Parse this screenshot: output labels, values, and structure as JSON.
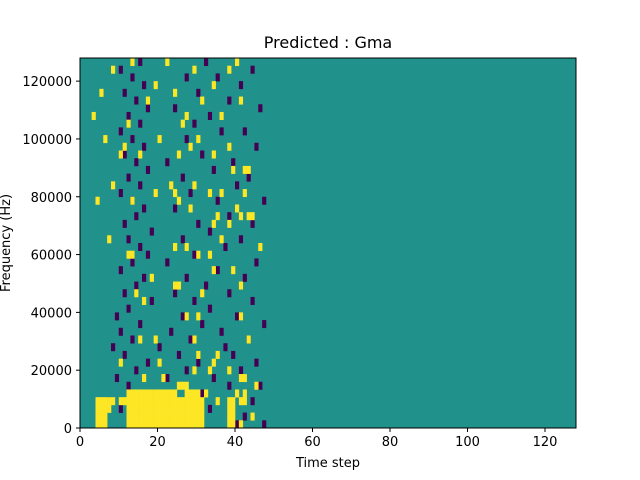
{
  "chart_data": {
    "type": "heatmap",
    "title": "Predicted : Gma",
    "xlabel": "Time step",
    "ylabel": "Frequency (Hz)",
    "xlim": [
      0,
      128
    ],
    "ylim": [
      0,
      128000
    ],
    "x_ticks": [
      0,
      20,
      40,
      60,
      80,
      100,
      120
    ],
    "x_tick_labels": [
      "0",
      "20",
      "40",
      "60",
      "80",
      "100",
      "120"
    ],
    "y_ticks": [
      0,
      20000,
      40000,
      60000,
      80000,
      100000,
      120000
    ],
    "y_tick_labels": [
      "0",
      "20000",
      "40000",
      "60000",
      "80000",
      "100000",
      "120000"
    ],
    "grid": false,
    "n_time_steps": 128,
    "n_freq_bins": 48,
    "values_legend": {
      "0": "low",
      "1": "background",
      "2": "high"
    },
    "colors": {
      "low": "#440154",
      "background": "#21918c",
      "high": "#fde725"
    },
    "high_cells": [
      [
        0,
        4
      ],
      [
        0,
        5
      ],
      [
        0,
        6
      ],
      [
        0,
        12
      ],
      [
        0,
        13
      ],
      [
        0,
        14
      ],
      [
        0,
        15
      ],
      [
        0,
        16
      ],
      [
        0,
        17
      ],
      [
        0,
        18
      ],
      [
        0,
        19
      ],
      [
        0,
        20
      ],
      [
        0,
        21
      ],
      [
        0,
        22
      ],
      [
        0,
        23
      ],
      [
        0,
        24
      ],
      [
        0,
        25
      ],
      [
        0,
        26
      ],
      [
        0,
        27
      ],
      [
        0,
        28
      ],
      [
        0,
        29
      ],
      [
        0,
        30
      ],
      [
        0,
        31
      ],
      [
        0,
        38
      ],
      [
        0,
        39
      ],
      [
        0,
        41
      ],
      [
        1,
        4
      ],
      [
        1,
        5
      ],
      [
        1,
        6
      ],
      [
        1,
        12
      ],
      [
        1,
        13
      ],
      [
        1,
        14
      ],
      [
        1,
        15
      ],
      [
        1,
        16
      ],
      [
        1,
        17
      ],
      [
        1,
        18
      ],
      [
        1,
        19
      ],
      [
        1,
        20
      ],
      [
        1,
        21
      ],
      [
        1,
        22
      ],
      [
        1,
        23
      ],
      [
        1,
        24
      ],
      [
        1,
        25
      ],
      [
        1,
        26
      ],
      [
        1,
        27
      ],
      [
        1,
        28
      ],
      [
        1,
        29
      ],
      [
        1,
        30
      ],
      [
        1,
        31
      ],
      [
        1,
        38
      ],
      [
        1,
        39
      ],
      [
        1,
        44
      ],
      [
        2,
        4
      ],
      [
        2,
        5
      ],
      [
        2,
        6
      ],
      [
        2,
        7
      ],
      [
        2,
        12
      ],
      [
        2,
        13
      ],
      [
        2,
        14
      ],
      [
        2,
        15
      ],
      [
        2,
        16
      ],
      [
        2,
        17
      ],
      [
        2,
        18
      ],
      [
        2,
        19
      ],
      [
        2,
        20
      ],
      [
        2,
        21
      ],
      [
        2,
        22
      ],
      [
        2,
        23
      ],
      [
        2,
        24
      ],
      [
        2,
        25
      ],
      [
        2,
        26
      ],
      [
        2,
        27
      ],
      [
        2,
        28
      ],
      [
        2,
        29
      ],
      [
        2,
        30
      ],
      [
        2,
        31
      ],
      [
        2,
        38
      ],
      [
        2,
        39
      ],
      [
        3,
        4
      ],
      [
        3,
        5
      ],
      [
        3,
        6
      ],
      [
        3,
        7
      ],
      [
        3,
        8
      ],
      [
        3,
        10
      ],
      [
        3,
        11
      ],
      [
        3,
        12
      ],
      [
        3,
        13
      ],
      [
        3,
        14
      ],
      [
        3,
        15
      ],
      [
        3,
        16
      ],
      [
        3,
        17
      ],
      [
        3,
        18
      ],
      [
        3,
        19
      ],
      [
        3,
        20
      ],
      [
        3,
        21
      ],
      [
        3,
        22
      ],
      [
        3,
        23
      ],
      [
        3,
        24
      ],
      [
        3,
        25
      ],
      [
        3,
        26
      ],
      [
        3,
        27
      ],
      [
        3,
        28
      ],
      [
        3,
        29
      ],
      [
        3,
        30
      ],
      [
        3,
        31
      ],
      [
        3,
        35
      ],
      [
        3,
        38
      ],
      [
        3,
        39
      ],
      [
        3,
        41
      ],
      [
        3,
        42
      ],
      [
        4,
        12
      ],
      [
        4,
        13
      ],
      [
        4,
        14
      ],
      [
        4,
        15
      ],
      [
        4,
        16
      ],
      [
        4,
        17
      ],
      [
        4,
        18
      ],
      [
        4,
        19
      ],
      [
        4,
        20
      ],
      [
        4,
        21
      ],
      [
        4,
        22
      ],
      [
        4,
        23
      ],
      [
        4,
        24
      ],
      [
        4,
        27
      ],
      [
        4,
        28
      ],
      [
        4,
        29
      ],
      [
        4,
        30
      ],
      [
        4,
        32
      ],
      [
        4,
        40
      ],
      [
        4,
        42
      ],
      [
        5,
        25
      ],
      [
        5,
        26
      ],
      [
        5,
        27
      ],
      [
        5,
        45
      ],
      [
        6,
        16
      ],
      [
        6,
        21
      ],
      [
        6,
        41
      ],
      [
        6,
        42
      ],
      [
        7,
        29
      ],
      [
        7,
        33
      ],
      [
        7,
        38
      ],
      [
        8,
        10
      ],
      [
        8,
        20
      ],
      [
        8,
        34
      ],
      [
        9,
        30
      ],
      [
        9,
        35
      ],
      [
        11,
        15
      ],
      [
        11,
        19
      ],
      [
        11,
        29
      ],
      [
        11,
        43
      ],
      [
        14,
        27
      ],
      [
        14,
        30
      ],
      [
        14,
        41
      ],
      [
        16,
        16
      ],
      [
        17,
        14
      ],
      [
        17,
        31
      ],
      [
        18,
        24
      ],
      [
        18,
        25
      ],
      [
        18,
        41
      ],
      [
        19,
        18
      ],
      [
        20,
        34
      ],
      [
        20,
        39
      ],
      [
        22,
        12
      ],
      [
        22,
        13
      ],
      [
        22,
        30
      ],
      [
        22,
        33
      ],
      [
        23,
        24
      ],
      [
        23,
        27
      ],
      [
        23,
        46
      ],
      [
        24,
        7
      ],
      [
        24,
        36
      ],
      [
        26,
        34
      ],
      [
        26,
        38
      ],
      [
        27,
        35
      ],
      [
        27,
        41
      ],
      [
        27,
        43
      ],
      [
        27,
        44
      ],
      [
        28,
        28
      ],
      [
        28,
        40
      ],
      [
        29,
        4
      ],
      [
        29,
        13
      ],
      [
        29,
        25
      ],
      [
        30,
        19
      ],
      [
        30,
        24
      ],
      [
        30,
        33
      ],
      [
        30,
        36
      ],
      [
        30,
        42
      ],
      [
        31,
        8
      ],
      [
        31,
        23
      ],
      [
        31,
        29
      ],
      [
        33,
        39
      ],
      [
        33,
        42
      ],
      [
        33,
        43
      ],
      [
        35,
        10
      ],
      [
        35,
        15
      ],
      [
        35,
        25
      ],
      [
        35,
        34
      ],
      [
        36,
        11
      ],
      [
        36,
        28
      ],
      [
        36,
        38
      ],
      [
        37,
        6
      ],
      [
        37,
        20
      ],
      [
        37,
        30
      ],
      [
        39,
        12
      ],
      [
        39,
        26
      ],
      [
        40,
        3
      ],
      [
        40,
        27
      ],
      [
        40,
        36
      ],
      [
        42,
        17
      ],
      [
        42,
        31
      ],
      [
        42,
        41
      ],
      [
        43,
        5
      ],
      [
        43,
        24
      ],
      [
        44,
        19
      ],
      [
        44,
        34
      ],
      [
        46,
        8
      ],
      [
        46,
        29
      ],
      [
        46,
        38
      ],
      [
        47,
        13
      ],
      [
        47,
        22
      ],
      [
        47,
        40
      ]
    ],
    "low_cells": [
      [
        0,
        40
      ],
      [
        0,
        47
      ],
      [
        1,
        15
      ],
      [
        1,
        42
      ],
      [
        2,
        10
      ],
      [
        2,
        24
      ],
      [
        2,
        33
      ],
      [
        3,
        7
      ],
      [
        3,
        29
      ],
      [
        3,
        44
      ],
      [
        4,
        18
      ],
      [
        4,
        31
      ],
      [
        5,
        12
      ],
      [
        5,
        38
      ],
      [
        5,
        46
      ],
      [
        6,
        9
      ],
      [
        6,
        22
      ],
      [
        6,
        34
      ],
      [
        7,
        14
      ],
      [
        7,
        27
      ],
      [
        7,
        41
      ],
      [
        8,
        17
      ],
      [
        8,
        30
      ],
      [
        8,
        45
      ],
      [
        9,
        11
      ],
      [
        9,
        25
      ],
      [
        9,
        39
      ],
      [
        10,
        8
      ],
      [
        10,
        20
      ],
      [
        10,
        37
      ],
      [
        11,
        13
      ],
      [
        11,
        28
      ],
      [
        11,
        43
      ],
      [
        12,
        10
      ],
      [
        12,
        23
      ],
      [
        12,
        36
      ],
      [
        13,
        15
      ],
      [
        13,
        31
      ],
      [
        13,
        47
      ],
      [
        14,
        9
      ],
      [
        14,
        26
      ],
      [
        14,
        40
      ],
      [
        15,
        12
      ],
      [
        15,
        33
      ],
      [
        16,
        18
      ],
      [
        16,
        29
      ],
      [
        16,
        44
      ],
      [
        17,
        11
      ],
      [
        17,
        24
      ],
      [
        17,
        38
      ],
      [
        18,
        14
      ],
      [
        18,
        32
      ],
      [
        19,
        16
      ],
      [
        19,
        27
      ],
      [
        19,
        42
      ],
      [
        20,
        10
      ],
      [
        20,
        35
      ],
      [
        21,
        13
      ],
      [
        21,
        22
      ],
      [
        21,
        45
      ],
      [
        22,
        17
      ],
      [
        22,
        29
      ],
      [
        23,
        15
      ],
      [
        23,
        37
      ],
      [
        24,
        12
      ],
      [
        24,
        26
      ],
      [
        24,
        41
      ],
      [
        25,
        18
      ],
      [
        25,
        33
      ],
      [
        26,
        11
      ],
      [
        26,
        30
      ],
      [
        26,
        44
      ],
      [
        27,
        14
      ],
      [
        27,
        38
      ],
      [
        28,
        16
      ],
      [
        28,
        24
      ],
      [
        29,
        13
      ],
      [
        29,
        35
      ],
      [
        29,
        47
      ],
      [
        30,
        10
      ],
      [
        30,
        28
      ],
      [
        31,
        15
      ],
      [
        31,
        40
      ],
      [
        32,
        12
      ],
      [
        32,
        26
      ],
      [
        32,
        43
      ],
      [
        33,
        17
      ],
      [
        33,
        34
      ],
      [
        34,
        14
      ],
      [
        34,
        22
      ],
      [
        34,
        39
      ],
      [
        35,
        11
      ],
      [
        35,
        31
      ],
      [
        36,
        16
      ],
      [
        36,
        45
      ],
      [
        37,
        13
      ],
      [
        37,
        27
      ],
      [
        38,
        10
      ],
      [
        38,
        36
      ],
      [
        38,
        42
      ],
      [
        39,
        15
      ],
      [
        39,
        29
      ],
      [
        40,
        12
      ],
      [
        40,
        33
      ],
      [
        41,
        17
      ],
      [
        41,
        24
      ],
      [
        41,
        46
      ],
      [
        42,
        14
      ],
      [
        42,
        38
      ],
      [
        43,
        11
      ],
      [
        43,
        30
      ],
      [
        44,
        16
      ],
      [
        44,
        41
      ],
      [
        45,
        13
      ],
      [
        45,
        27
      ],
      [
        45,
        35
      ],
      [
        46,
        10
      ],
      [
        46,
        44
      ],
      [
        47,
        15
      ],
      [
        47,
        32
      ]
    ]
  }
}
